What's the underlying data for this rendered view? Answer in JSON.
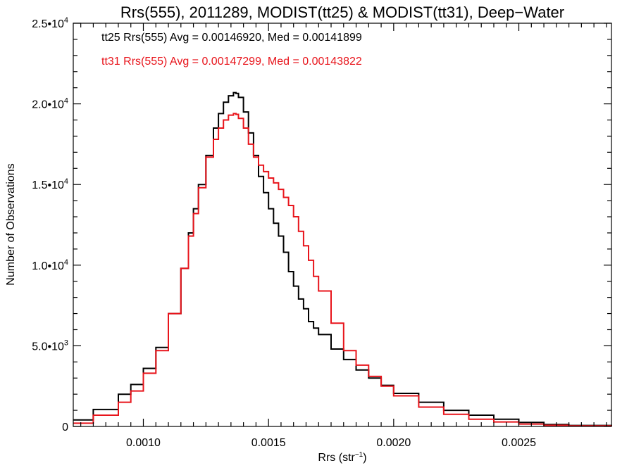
{
  "chart_data": {
    "type": "line",
    "title": "Rrs(555), 2011289, MODIST(tt25) & MODIST(tt31), Deep−Water",
    "xlabel": "Rrs (str",
    "xlabel_sup": "−1",
    "xlabel_tail": ")",
    "ylabel": "Number of Observations",
    "xlim": [
      0.00072,
      0.00287
    ],
    "ylim": [
      0,
      25000
    ],
    "grid": false,
    "legend_position": "top-left",
    "x_ticks": [
      {
        "value": 0.001,
        "label": "0.0010"
      },
      {
        "value": 0.0015,
        "label": "0.0015"
      },
      {
        "value": 0.002,
        "label": "0.0020"
      },
      {
        "value": 0.0025,
        "label": "0.0025"
      }
    ],
    "y_ticks": [
      {
        "value": 0,
        "mant": "0",
        "exp": ""
      },
      {
        "value": 5000,
        "mant": "5.0•10",
        "exp": "3"
      },
      {
        "value": 10000,
        "mant": "1.0•10",
        "exp": "4"
      },
      {
        "value": 15000,
        "mant": "1.5•10",
        "exp": "4"
      },
      {
        "value": 20000,
        "mant": "2.0•10",
        "exp": "4"
      },
      {
        "value": 25000,
        "mant": "2.5•10",
        "exp": "4"
      }
    ],
    "series": [
      {
        "name": "tt25",
        "color": "#000000",
        "annotation": "tt25 Rrs(555) Avg = 0.00146920, Med = 0.00141899",
        "x": [
          0.00072,
          0.0008,
          0.0009,
          0.00095,
          0.001,
          0.00105,
          0.0011,
          0.00115,
          0.00118,
          0.0012,
          0.00122,
          0.00125,
          0.00128,
          0.0013,
          0.00132,
          0.00134,
          0.00136,
          0.00137,
          0.00138,
          0.0014,
          0.00142,
          0.00144,
          0.00146,
          0.00148,
          0.0015,
          0.00152,
          0.00154,
          0.00156,
          0.00158,
          0.0016,
          0.00162,
          0.00164,
          0.00166,
          0.00168,
          0.0017,
          0.00175,
          0.0018,
          0.00185,
          0.0019,
          0.00195,
          0.002,
          0.0021,
          0.0022,
          0.0023,
          0.0024,
          0.0025,
          0.0026,
          0.0027,
          0.00287
        ],
        "y": [
          400,
          1050,
          2000,
          2600,
          3600,
          4900,
          7000,
          9800,
          12000,
          13500,
          15000,
          16800,
          18500,
          19400,
          20100,
          20500,
          20700,
          20650,
          20400,
          19500,
          18200,
          16800,
          15500,
          14500,
          13500,
          12600,
          11800,
          10800,
          9600,
          8700,
          7900,
          7300,
          6500,
          6100,
          5700,
          4800,
          4150,
          3500,
          3000,
          2550,
          2050,
          1500,
          1000,
          700,
          450,
          250,
          120,
          60,
          30
        ]
      },
      {
        "name": "tt31",
        "color": "#e8141b",
        "annotation": "tt31 Rrs(555) Avg = 0.00147299, Med = 0.00143822",
        "x": [
          0.00072,
          0.0008,
          0.0009,
          0.00095,
          0.001,
          0.00105,
          0.0011,
          0.00115,
          0.00118,
          0.0012,
          0.00122,
          0.00125,
          0.00128,
          0.0013,
          0.00132,
          0.00134,
          0.00136,
          0.00137,
          0.00138,
          0.0014,
          0.00142,
          0.00144,
          0.00146,
          0.00148,
          0.0015,
          0.00152,
          0.00154,
          0.00156,
          0.00158,
          0.0016,
          0.00162,
          0.00164,
          0.00166,
          0.00168,
          0.0017,
          0.00175,
          0.0018,
          0.00185,
          0.0019,
          0.00195,
          0.002,
          0.0021,
          0.0022,
          0.0023,
          0.0024,
          0.0025,
          0.0026,
          0.0027,
          0.00287
        ],
        "y": [
          200,
          700,
          1500,
          2200,
          3300,
          4700,
          7000,
          9800,
          11800,
          13200,
          14800,
          16700,
          17800,
          18500,
          19000,
          19300,
          19400,
          19350,
          19100,
          18500,
          17500,
          16700,
          16200,
          15800,
          15400,
          15100,
          14700,
          14200,
          13700,
          13000,
          12100,
          11200,
          10300,
          9300,
          8400,
          6400,
          4700,
          3800,
          3100,
          2500,
          1900,
          1200,
          750,
          450,
          280,
          150,
          70,
          35,
          15
        ]
      }
    ]
  }
}
